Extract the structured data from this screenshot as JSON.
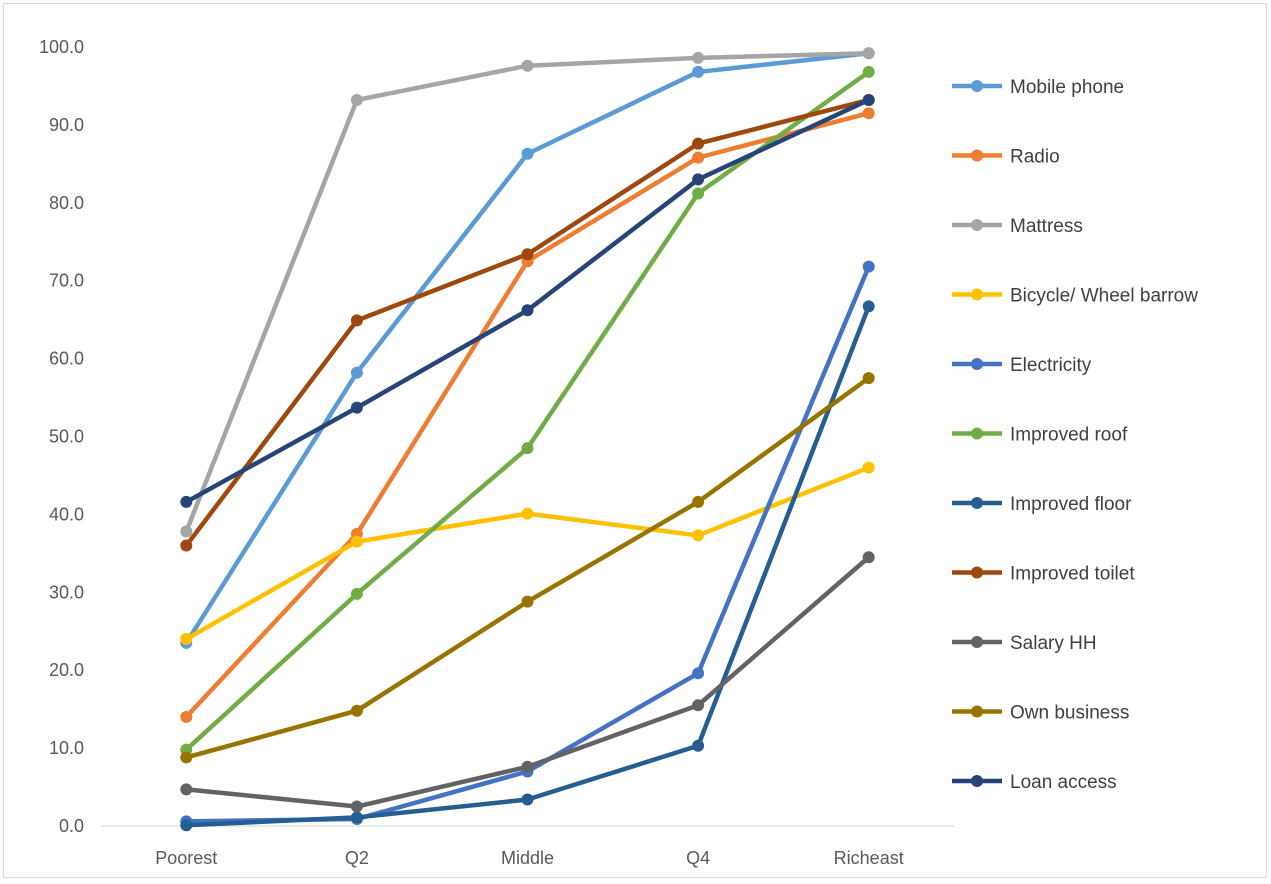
{
  "chart_data": {
    "type": "line",
    "title": "",
    "xlabel": "",
    "ylabel": "",
    "categories": [
      "Poorest",
      "Q2",
      "Middle",
      "Q4",
      "Richeast"
    ],
    "ylim": [
      0,
      100
    ],
    "yticks": [
      "0.0",
      "10.0",
      "20.0",
      "30.0",
      "40.0",
      "50.0",
      "60.0",
      "70.0",
      "80.0",
      "90.0",
      "100.0"
    ],
    "grid": false,
    "legend_position": "right",
    "series": [
      {
        "name": "Mobile phone",
        "color": "#5b9bd5",
        "values": [
          23.5,
          58.2,
          86.3,
          96.8,
          99.2
        ]
      },
      {
        "name": "Radio",
        "color": "#ed7d31",
        "values": [
          14.0,
          37.5,
          72.5,
          85.8,
          91.5
        ]
      },
      {
        "name": "Mattress",
        "color": "#a5a5a5",
        "values": [
          37.8,
          93.2,
          97.6,
          98.6,
          99.2
        ]
      },
      {
        "name": "Bicycle/ Wheel barrow",
        "color": "#ffc000",
        "values": [
          24.0,
          36.5,
          40.1,
          37.3,
          46.0
        ]
      },
      {
        "name": "Electricity",
        "color": "#4472c4",
        "values": [
          0.6,
          0.9,
          7.0,
          19.6,
          71.8
        ]
      },
      {
        "name": "Improved roof",
        "color": "#70ad47",
        "values": [
          9.8,
          29.8,
          48.5,
          81.2,
          96.8
        ]
      },
      {
        "name": "Improved floor",
        "color": "#255e91",
        "values": [
          0.1,
          1.1,
          3.4,
          10.3,
          66.7
        ]
      },
      {
        "name": "Improved toilet",
        "color": "#9e480e",
        "values": [
          36.0,
          64.9,
          73.4,
          87.6,
          93.2
        ]
      },
      {
        "name": "Salary HH",
        "color": "#636363",
        "values": [
          4.7,
          2.5,
          7.6,
          15.5,
          34.5
        ]
      },
      {
        "name": "Own business",
        "color": "#997300",
        "values": [
          8.8,
          14.8,
          28.8,
          41.6,
          57.5
        ]
      },
      {
        "name": "Loan access",
        "color": "#264478",
        "values": [
          41.6,
          53.7,
          66.2,
          83.0,
          93.2
        ]
      }
    ]
  }
}
